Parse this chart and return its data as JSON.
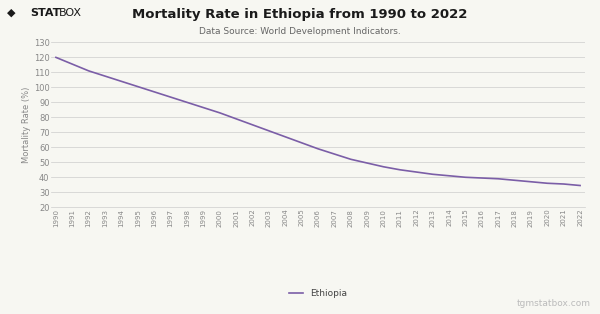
{
  "title": "Mortality Rate in Ethiopia from 1990 to 2022",
  "subtitle": "Data Source: World Development Indicators.",
  "ylabel": "Mortality Rate (%)",
  "legend_label": "Ethiopia",
  "watermark": "tgmstatbox.com",
  "background_color": "#f7f7f2",
  "line_color": "#7b5ea7",
  "ylim": [
    20,
    130
  ],
  "yticks": [
    20,
    30,
    40,
    50,
    60,
    70,
    80,
    90,
    100,
    110,
    120,
    130
  ],
  "years": [
    1990,
    1991,
    1992,
    1993,
    1994,
    1995,
    1996,
    1997,
    1998,
    1999,
    2000,
    2001,
    2002,
    2003,
    2004,
    2005,
    2006,
    2007,
    2008,
    2009,
    2010,
    2011,
    2012,
    2013,
    2014,
    2015,
    2016,
    2017,
    2018,
    2019,
    2020,
    2021,
    2022
  ],
  "values": [
    120.0,
    115.5,
    111.0,
    107.5,
    104.0,
    100.5,
    97.0,
    93.5,
    90.0,
    86.5,
    83.0,
    79.0,
    75.0,
    71.0,
    67.0,
    63.0,
    59.0,
    55.5,
    52.0,
    49.5,
    47.0,
    45.0,
    43.5,
    42.0,
    41.0,
    40.0,
    39.5,
    39.0,
    38.0,
    37.0,
    36.0,
    35.5,
    34.5
  ],
  "title_fontsize": 9.5,
  "subtitle_fontsize": 6.5,
  "ylabel_fontsize": 6,
  "ytick_fontsize": 6,
  "xtick_fontsize": 5,
  "legend_fontsize": 6.5,
  "watermark_fontsize": 6.5,
  "logo_fontsize": 8
}
